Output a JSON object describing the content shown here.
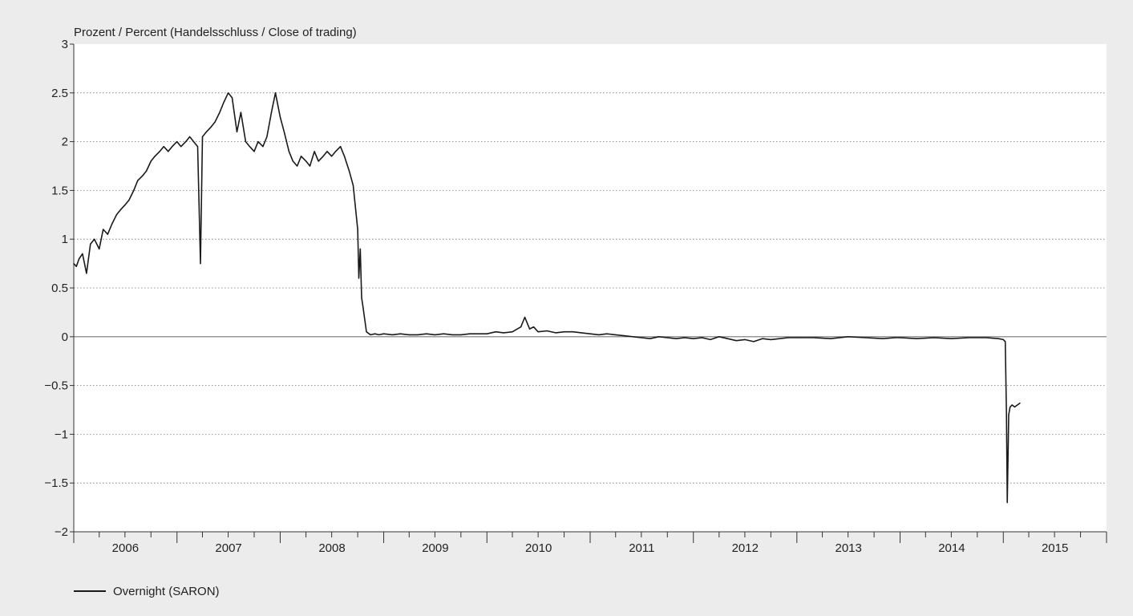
{
  "chart_data": {
    "type": "line",
    "ylabel": "Prozent / Percent (Handelsschluss / Close of trading)",
    "ylim": [
      -2,
      3
    ],
    "yticks": [
      3,
      2.5,
      2,
      1.5,
      1,
      0.5,
      0,
      -0.5,
      -1,
      -1.5,
      -2
    ],
    "ytick_labels": [
      "3",
      "2.5",
      "2",
      "1.5",
      "1",
      "0.5",
      "0",
      "−0.5",
      "−1",
      "−1.5",
      "−2"
    ],
    "xlim": [
      "2006-01-01",
      "2016-01-01"
    ],
    "xtick_labels": [
      "2006",
      "2007",
      "2008",
      "2009",
      "2010",
      "2011",
      "2012",
      "2013",
      "2014",
      "2015"
    ],
    "grid": true,
    "legend_position": "bottom-left",
    "series": [
      {
        "name": "Overnight (SARON)",
        "color": "#1a1a1a",
        "x": [
          "2006-01-01",
          "2006-01-10",
          "2006-01-20",
          "2006-02-01",
          "2006-02-15",
          "2006-03-01",
          "2006-03-15",
          "2006-04-01",
          "2006-04-15",
          "2006-05-01",
          "2006-05-15",
          "2006-06-01",
          "2006-06-15",
          "2006-07-01",
          "2006-07-15",
          "2006-08-01",
          "2006-08-15",
          "2006-09-01",
          "2006-09-15",
          "2006-10-01",
          "2006-10-15",
          "2006-11-01",
          "2006-11-15",
          "2006-12-01",
          "2006-12-15",
          "2007-01-01",
          "2007-01-15",
          "2007-02-01",
          "2007-02-15",
          "2007-03-01",
          "2007-03-15",
          "2007-03-25",
          "2007-04-01",
          "2007-04-15",
          "2007-05-01",
          "2007-05-15",
          "2007-06-01",
          "2007-06-15",
          "2007-07-01",
          "2007-07-15",
          "2007-08-01",
          "2007-08-15",
          "2007-09-01",
          "2007-09-15",
          "2007-10-01",
          "2007-10-15",
          "2007-11-01",
          "2007-11-15",
          "2007-12-01",
          "2007-12-15",
          "2008-01-01",
          "2008-01-15",
          "2008-02-01",
          "2008-02-15",
          "2008-03-01",
          "2008-03-15",
          "2008-04-01",
          "2008-04-15",
          "2008-05-01",
          "2008-05-15",
          "2008-06-01",
          "2008-06-15",
          "2008-07-01",
          "2008-07-15",
          "2008-08-01",
          "2008-08-15",
          "2008-09-01",
          "2008-09-15",
          "2008-10-01",
          "2008-10-05",
          "2008-10-10",
          "2008-10-15",
          "2008-10-20",
          "2008-11-01",
          "2008-11-15",
          "2008-12-01",
          "2008-12-15",
          "2009-01-01",
          "2009-02-01",
          "2009-03-01",
          "2009-04-01",
          "2009-05-01",
          "2009-06-01",
          "2009-07-01",
          "2009-08-01",
          "2009-09-01",
          "2009-10-01",
          "2009-11-01",
          "2009-12-01",
          "2010-01-01",
          "2010-02-01",
          "2010-03-01",
          "2010-04-01",
          "2010-05-01",
          "2010-05-15",
          "2010-06-01",
          "2010-06-15",
          "2010-07-01",
          "2010-08-01",
          "2010-09-01",
          "2010-10-01",
          "2010-11-01",
          "2010-12-01",
          "2011-01-01",
          "2011-02-01",
          "2011-03-01",
          "2011-04-01",
          "2011-05-01",
          "2011-06-01",
          "2011-07-01",
          "2011-08-01",
          "2011-09-01",
          "2011-10-01",
          "2011-11-01",
          "2011-12-01",
          "2012-01-01",
          "2012-02-01",
          "2012-03-01",
          "2012-04-01",
          "2012-05-01",
          "2012-06-01",
          "2012-07-01",
          "2012-08-01",
          "2012-09-01",
          "2012-10-01",
          "2012-11-01",
          "2012-12-01",
          "2013-01-01",
          "2013-03-01",
          "2013-05-01",
          "2013-07-01",
          "2013-09-01",
          "2013-11-01",
          "2013-12-15",
          "2014-01-01",
          "2014-03-01",
          "2014-05-01",
          "2014-07-01",
          "2014-09-01",
          "2014-11-01",
          "2014-12-15",
          "2015-01-01",
          "2015-01-08",
          "2015-01-12",
          "2015-01-15",
          "2015-01-20",
          "2015-01-25",
          "2015-02-01",
          "2015-02-10",
          "2015-02-20",
          "2015-03-01"
        ],
        "values": [
          0.75,
          0.72,
          0.8,
          0.85,
          0.65,
          0.95,
          1.0,
          0.9,
          1.1,
          1.05,
          1.15,
          1.25,
          1.3,
          1.35,
          1.4,
          1.5,
          1.6,
          1.65,
          1.7,
          1.8,
          1.85,
          1.9,
          1.95,
          1.9,
          1.95,
          2.0,
          1.95,
          2.0,
          2.05,
          2.0,
          1.95,
          0.75,
          2.05,
          2.1,
          2.15,
          2.2,
          2.3,
          2.4,
          2.5,
          2.45,
          2.1,
          2.3,
          2.0,
          1.95,
          1.9,
          2.0,
          1.95,
          2.05,
          2.3,
          2.5,
          2.25,
          2.1,
          1.9,
          1.8,
          1.75,
          1.85,
          1.8,
          1.75,
          1.9,
          1.8,
          1.85,
          1.9,
          1.85,
          1.9,
          1.95,
          1.85,
          1.7,
          1.55,
          1.1,
          0.6,
          0.9,
          0.4,
          0.3,
          0.05,
          0.02,
          0.03,
          0.02,
          0.03,
          0.02,
          0.03,
          0.02,
          0.02,
          0.03,
          0.02,
          0.03,
          0.02,
          0.02,
          0.03,
          0.03,
          0.03,
          0.05,
          0.04,
          0.05,
          0.1,
          0.2,
          0.08,
          0.1,
          0.05,
          0.06,
          0.04,
          0.05,
          0.05,
          0.04,
          0.03,
          0.02,
          0.03,
          0.02,
          0.01,
          0.0,
          -0.01,
          -0.02,
          0.0,
          -0.01,
          -0.02,
          -0.01,
          -0.02,
          -0.01,
          -0.03,
          0.0,
          -0.02,
          -0.04,
          -0.03,
          -0.05,
          -0.02,
          -0.03,
          -0.02,
          -0.01,
          -0.01,
          -0.01,
          -0.02,
          0.0,
          -0.01,
          -0.02,
          -0.01,
          -0.01,
          -0.02,
          -0.01,
          -0.02,
          -0.01,
          -0.01,
          -0.02,
          -0.03,
          -0.05,
          -0.8,
          -1.7,
          -0.8,
          -0.72,
          -0.7,
          -0.72,
          -0.7,
          -0.68
        ]
      }
    ]
  }
}
